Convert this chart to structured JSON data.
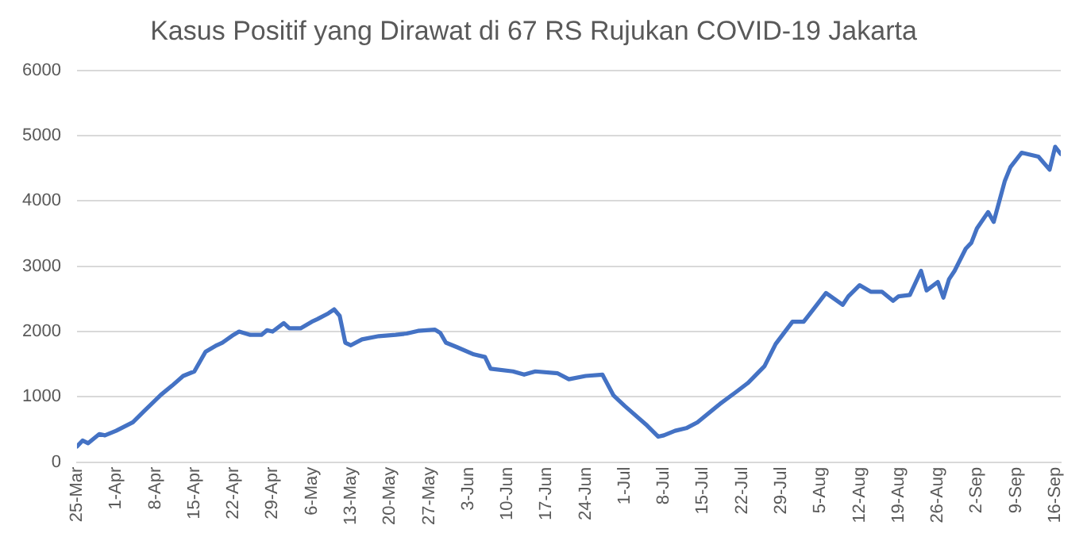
{
  "chart_data": {
    "type": "line",
    "title": "Kasus Positif yang Dirawat di 67 RS Rujukan COVID-19 Jakarta",
    "x": [
      "--03-25",
      "--03-26",
      "--03-27",
      "--03-29",
      "--03-30",
      "--04-01",
      "--04-04",
      "--04-06",
      "--04-09",
      "--04-11",
      "--04-13",
      "--04-15",
      "--04-17",
      "--04-19",
      "--04-20",
      "--04-22",
      "--04-23",
      "--04-25",
      "--04-27",
      "--04-28",
      "--04-29",
      "--05-01",
      "--05-02",
      "--05-04",
      "--05-06",
      "--05-07",
      "--05-09",
      "--05-10",
      "--05-11",
      "--05-12",
      "--05-13",
      "--05-15",
      "--05-18",
      "--05-21",
      "--05-23",
      "--05-25",
      "--05-28",
      "--05-29",
      "--05-30",
      "--06-01",
      "--06-04",
      "--06-06",
      "--06-07",
      "--06-11",
      "--06-13",
      "--06-15",
      "--06-19",
      "--06-21",
      "--06-24",
      "--06-27",
      "--06-29",
      "--07-01",
      "--07-05",
      "--07-07",
      "--07-08",
      "--07-10",
      "--07-12",
      "--07-14",
      "--07-18",
      "--07-21",
      "--07-23",
      "--07-26",
      "--07-28",
      "--07-31",
      "--08-02",
      "--08-04",
      "--08-06",
      "--08-09",
      "--08-10",
      "--08-12",
      "--08-14",
      "--08-16",
      "--08-18",
      "--08-19",
      "--08-21",
      "--08-23",
      "--08-24",
      "--08-26",
      "--08-27",
      "--08-28",
      "--08-29",
      "--08-31",
      "--09-01",
      "--09-02",
      "--09-04",
      "--09-05",
      "--09-07",
      "--09-08",
      "--09-10",
      "--09-13",
      "--09-15",
      "--09-16",
      "--09-17"
    ],
    "series": [
      {
        "color": "#4472c4",
        "values": [
          240,
          330,
          290,
          430,
          410,
          480,
          610,
          780,
          1030,
          1170,
          1320,
          1390,
          1690,
          1790,
          1830,
          1950,
          2000,
          1950,
          1950,
          2020,
          2000,
          2130,
          2050,
          2050,
          2150,
          2190,
          2280,
          2340,
          2240,
          1830,
          1790,
          1880,
          1930,
          1950,
          1970,
          2010,
          2030,
          1980,
          1830,
          1760,
          1650,
          1610,
          1430,
          1390,
          1340,
          1390,
          1360,
          1270,
          1320,
          1340,
          1020,
          860,
          560,
          390,
          410,
          480,
          520,
          610,
          890,
          1080,
          1210,
          1470,
          1810,
          2150,
          2150,
          2370,
          2590,
          2410,
          2540,
          2710,
          2610,
          2610,
          2470,
          2540,
          2560,
          2930,
          2630,
          2760,
          2520,
          2800,
          2930,
          3270,
          3360,
          3580,
          3830,
          3680,
          4310,
          4520,
          4740,
          4680,
          4480,
          4830,
          4720
        ]
      }
    ],
    "xlim": [
      "--03-25",
      "--09-17"
    ],
    "xticks": [
      {
        "value": "--03-25",
        "label": "25-Mar"
      },
      {
        "value": "--04-01",
        "label": "1-Apr"
      },
      {
        "value": "--04-08",
        "label": "8-Apr"
      },
      {
        "value": "--04-15",
        "label": "15-Apr"
      },
      {
        "value": "--04-22",
        "label": "22-Apr"
      },
      {
        "value": "--04-29",
        "label": "29-Apr"
      },
      {
        "value": "--05-06",
        "label": "6-May"
      },
      {
        "value": "--05-13",
        "label": "13-May"
      },
      {
        "value": "--05-20",
        "label": "20-May"
      },
      {
        "value": "--05-27",
        "label": "27-May"
      },
      {
        "value": "--06-03",
        "label": "3-Jun"
      },
      {
        "value": "--06-10",
        "label": "10-Jun"
      },
      {
        "value": "--06-17",
        "label": "17-Jun"
      },
      {
        "value": "--06-24",
        "label": "24-Jun"
      },
      {
        "value": "--07-01",
        "label": "1-Jul"
      },
      {
        "value": "--07-08",
        "label": "8-Jul"
      },
      {
        "value": "--07-15",
        "label": "15-Jul"
      },
      {
        "value": "--07-22",
        "label": "22-Jul"
      },
      {
        "value": "--07-29",
        "label": "29-Jul"
      },
      {
        "value": "--08-05",
        "label": "5-Aug"
      },
      {
        "value": "--08-12",
        "label": "12-Aug"
      },
      {
        "value": "--08-19",
        "label": "19-Aug"
      },
      {
        "value": "--08-26",
        "label": "26-Aug"
      },
      {
        "value": "--09-02",
        "label": "2-Sep"
      },
      {
        "value": "--09-09",
        "label": "9-Sep"
      },
      {
        "value": "--09-16",
        "label": "16-Sep"
      }
    ],
    "ylim": [
      0,
      6000
    ],
    "yticks": [
      0,
      1000,
      2000,
      3000,
      4000,
      5000,
      6000
    ],
    "grid": "y",
    "legend": false,
    "marker": "none",
    "line_style": "solid"
  }
}
